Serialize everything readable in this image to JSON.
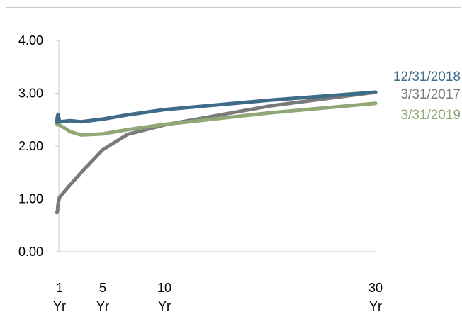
{
  "chart_data": {
    "type": "line",
    "title": "",
    "xlabel": "",
    "ylabel": "",
    "ylim": [
      0,
      4
    ],
    "yticks": [
      "0.00",
      "1.00",
      "2.00",
      "3.00",
      "4.00"
    ],
    "xticks": [
      {
        "value": 1,
        "lines": [
          "1",
          "Yr"
        ]
      },
      {
        "value": 5,
        "lines": [
          "5",
          "Yr"
        ]
      },
      {
        "value": 10,
        "lines": [
          "10",
          "Yr"
        ]
      },
      {
        "value": 30,
        "lines": [
          "30",
          "Yr"
        ]
      }
    ],
    "xlim": [
      1,
      30
    ],
    "grid": false,
    "legend": "inline-right",
    "series": [
      {
        "name": "12/31/2018",
        "color": "#3e6b87",
        "x": [
          0.083,
          0.25,
          0.5,
          1,
          2,
          3,
          5,
          7,
          10,
          20,
          30
        ],
        "y": [
          2.45,
          2.56,
          2.6,
          2.46,
          2.48,
          2.46,
          2.51,
          2.59,
          2.69,
          2.87,
          3.02
        ]
      },
      {
        "name": "3/31/2017",
        "color": "#7a7a7a",
        "x": [
          0.083,
          0.25,
          0.5,
          1,
          2,
          3,
          5,
          7,
          10,
          20,
          30
        ],
        "y": [
          0.74,
          0.76,
          0.91,
          1.03,
          1.27,
          1.5,
          1.93,
          2.22,
          2.4,
          2.76,
          3.02
        ]
      },
      {
        "name": "3/31/2019",
        "color": "#8fa876",
        "x": [
          0.083,
          0.25,
          0.5,
          1,
          2,
          3,
          5,
          7,
          10,
          20,
          30
        ],
        "y": [
          2.43,
          2.4,
          2.4,
          2.4,
          2.27,
          2.21,
          2.23,
          2.31,
          2.41,
          2.63,
          2.81
        ]
      }
    ]
  }
}
